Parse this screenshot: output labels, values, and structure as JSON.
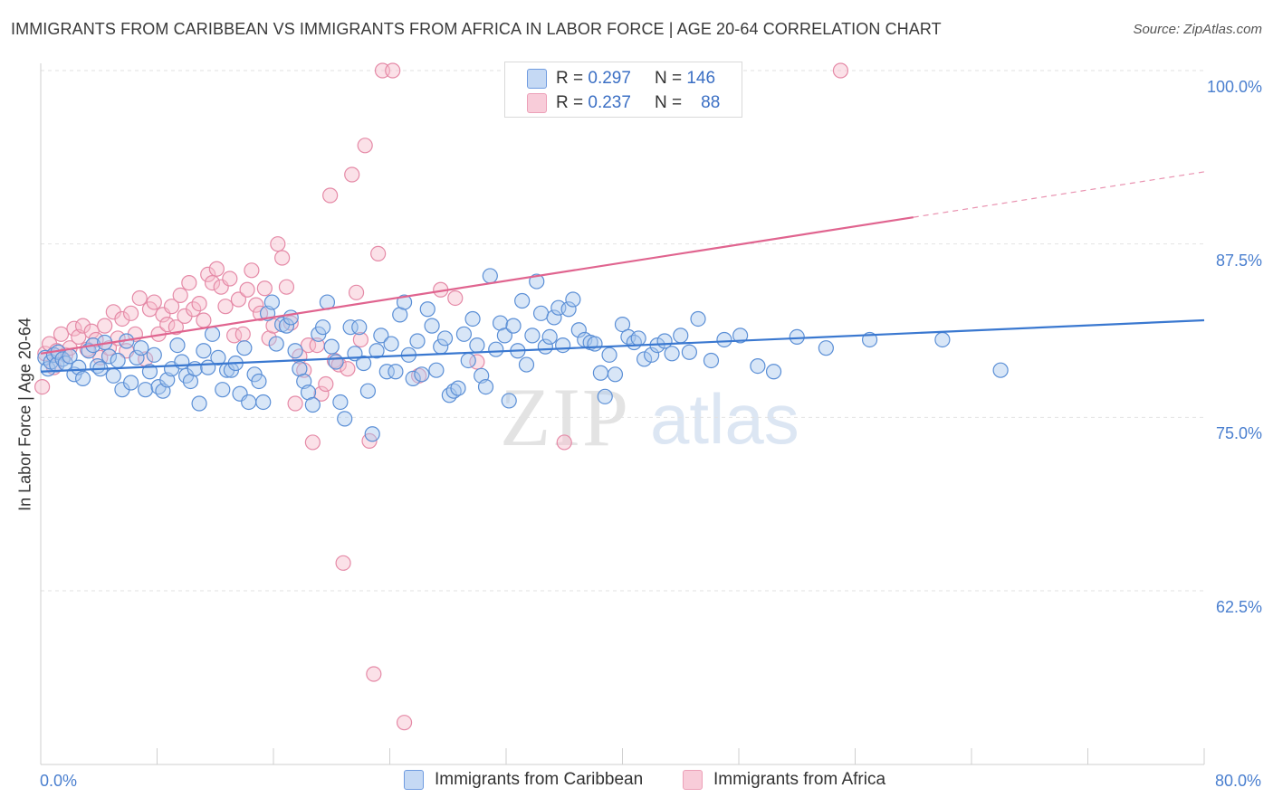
{
  "header": {
    "title": "IMMIGRANTS FROM CARIBBEAN VS IMMIGRANTS FROM AFRICA IN LABOR FORCE | AGE 20-64 CORRELATION CHART",
    "source": "Source: ZipAtlas.com"
  },
  "watermark": {
    "zip": "ZIP",
    "atlas": "atlas"
  },
  "stats": {
    "caribbean": {
      "r_label": "R =",
      "r": "0.297",
      "n_label": "N =",
      "n": "146"
    },
    "africa": {
      "r_label": "R =",
      "r": "0.237",
      "n_label": "N =",
      "n": "88"
    }
  },
  "colors": {
    "caribbean_fill": "#a9c7ee",
    "caribbean_stroke": "#5b8fd6",
    "caribbean_line": "#3a78d0",
    "africa_fill": "#f6bccd",
    "africa_stroke": "#e58aa7",
    "africa_line": "#e0648f",
    "accent_text": "#4a7fcf"
  },
  "chart_data": {
    "type": "scatter",
    "title": "IMMIGRANTS FROM CARIBBEAN VS IMMIGRANTS FROM AFRICA IN LABOR FORCE | AGE 20-64 CORRELATION CHART",
    "xlabel": "",
    "ylabel": "In Labor Force | Age 20-64",
    "xlim": [
      0,
      80
    ],
    "ylim": [
      50,
      101.5
    ],
    "x_tick_labels": [
      "0.0%",
      "80.0%"
    ],
    "y_ticks": [
      62.5,
      75.0,
      87.5,
      100.0
    ],
    "y_tick_labels": [
      "62.5%",
      "75.0%",
      "87.5%",
      "100.0%"
    ],
    "grid": "horizontal dashed",
    "legend_position": "bottom",
    "series": [
      {
        "name": "Immigrants from Caribbean",
        "trend": {
          "x": [
            0,
            80
          ],
          "y": [
            78.3,
            82.0
          ]
        },
        "points": [
          [
            0.3,
            79.3
          ],
          [
            0.5,
            78.5
          ],
          [
            0.7,
            79.0
          ],
          [
            0.9,
            79.5
          ],
          [
            1.1,
            78.8
          ],
          [
            1.2,
            79.7
          ],
          [
            1.5,
            79.2
          ],
          [
            1.7,
            78.9
          ],
          [
            2.0,
            79.4
          ],
          [
            2.3,
            78.1
          ],
          [
            2.6,
            78.6
          ],
          [
            2.9,
            77.8
          ],
          [
            3.3,
            79.8
          ],
          [
            3.6,
            80.2
          ],
          [
            3.9,
            78.7
          ],
          [
            4.1,
            78.5
          ],
          [
            4.4,
            80.4
          ],
          [
            4.7,
            79.4
          ],
          [
            5.0,
            78.0
          ],
          [
            5.3,
            79.1
          ],
          [
            5.6,
            77.0
          ],
          [
            5.9,
            80.5
          ],
          [
            6.2,
            77.5
          ],
          [
            6.6,
            79.3
          ],
          [
            6.9,
            80.0
          ],
          [
            7.2,
            77.0
          ],
          [
            7.5,
            78.3
          ],
          [
            7.8,
            79.5
          ],
          [
            8.1,
            77.2
          ],
          [
            8.4,
            76.9
          ],
          [
            8.7,
            77.7
          ],
          [
            9.0,
            78.5
          ],
          [
            9.4,
            80.2
          ],
          [
            9.7,
            79.0
          ],
          [
            10.0,
            78.0
          ],
          [
            10.3,
            77.6
          ],
          [
            10.6,
            78.5
          ],
          [
            10.9,
            76.0
          ],
          [
            11.2,
            79.8
          ],
          [
            11.5,
            78.6
          ],
          [
            11.8,
            81.0
          ],
          [
            12.2,
            79.3
          ],
          [
            12.5,
            77.0
          ],
          [
            12.8,
            78.4
          ],
          [
            13.1,
            78.4
          ],
          [
            13.4,
            78.9
          ],
          [
            13.7,
            76.7
          ],
          [
            14.0,
            80.0
          ],
          [
            14.3,
            76.1
          ],
          [
            14.7,
            78.1
          ],
          [
            15.0,
            77.6
          ],
          [
            15.3,
            76.1
          ],
          [
            15.6,
            82.5
          ],
          [
            15.9,
            83.3
          ],
          [
            16.2,
            80.3
          ],
          [
            16.6,
            81.7
          ],
          [
            16.9,
            81.6
          ],
          [
            17.2,
            82.2
          ],
          [
            17.5,
            79.8
          ],
          [
            17.8,
            78.5
          ],
          [
            18.1,
            77.6
          ],
          [
            18.4,
            76.8
          ],
          [
            18.7,
            75.9
          ],
          [
            19.1,
            81.0
          ],
          [
            19.4,
            81.5
          ],
          [
            19.7,
            83.3
          ],
          [
            20.0,
            80.1
          ],
          [
            20.3,
            79.0
          ],
          [
            20.6,
            76.1
          ],
          [
            20.9,
            74.9
          ],
          [
            21.3,
            81.5
          ],
          [
            21.6,
            79.6
          ],
          [
            21.9,
            81.5
          ],
          [
            22.2,
            78.9
          ],
          [
            22.5,
            76.9
          ],
          [
            22.8,
            73.8
          ],
          [
            23.1,
            79.8
          ],
          [
            23.4,
            80.9
          ],
          [
            23.8,
            78.3
          ],
          [
            24.1,
            80.3
          ],
          [
            24.4,
            78.3
          ],
          [
            24.7,
            82.4
          ],
          [
            25.0,
            83.3
          ],
          [
            25.3,
            79.5
          ],
          [
            25.6,
            77.8
          ],
          [
            25.9,
            80.5
          ],
          [
            26.2,
            78.1
          ],
          [
            26.6,
            82.8
          ],
          [
            26.9,
            81.6
          ],
          [
            27.2,
            78.4
          ],
          [
            27.5,
            80.1
          ],
          [
            27.8,
            80.7
          ],
          [
            28.1,
            76.6
          ],
          [
            28.4,
            76.9
          ],
          [
            28.7,
            77.1
          ],
          [
            29.1,
            81.0
          ],
          [
            29.4,
            79.1
          ],
          [
            29.7,
            82.1
          ],
          [
            30.0,
            80.2
          ],
          [
            30.3,
            78.0
          ],
          [
            30.6,
            77.2
          ],
          [
            30.9,
            85.2
          ],
          [
            31.3,
            79.9
          ],
          [
            31.6,
            81.8
          ],
          [
            31.9,
            80.9
          ],
          [
            32.2,
            76.2
          ],
          [
            32.5,
            81.6
          ],
          [
            32.8,
            79.8
          ],
          [
            33.1,
            83.4
          ],
          [
            33.4,
            78.8
          ],
          [
            33.8,
            80.9
          ],
          [
            34.1,
            84.8
          ],
          [
            34.4,
            82.5
          ],
          [
            34.7,
            80.1
          ],
          [
            35.0,
            80.8
          ],
          [
            35.3,
            82.2
          ],
          [
            35.6,
            82.9
          ],
          [
            35.9,
            80.2
          ],
          [
            36.3,
            82.8
          ],
          [
            36.6,
            83.5
          ],
          [
            37.0,
            81.3
          ],
          [
            37.4,
            80.6
          ],
          [
            37.8,
            80.4
          ],
          [
            38.1,
            80.3
          ],
          [
            38.5,
            78.2
          ],
          [
            38.8,
            76.5
          ],
          [
            39.1,
            79.5
          ],
          [
            39.5,
            78.1
          ],
          [
            40.0,
            81.7
          ],
          [
            40.4,
            80.8
          ],
          [
            40.8,
            80.4
          ],
          [
            41.1,
            80.7
          ],
          [
            41.5,
            79.2
          ],
          [
            42.0,
            79.5
          ],
          [
            42.4,
            80.2
          ],
          [
            42.9,
            80.5
          ],
          [
            43.4,
            79.6
          ],
          [
            44.0,
            80.9
          ],
          [
            44.6,
            79.7
          ],
          [
            45.2,
            82.1
          ],
          [
            46.1,
            79.1
          ],
          [
            47.0,
            80.6
          ],
          [
            48.1,
            80.9
          ],
          [
            49.3,
            78.7
          ],
          [
            50.4,
            78.3
          ],
          [
            52.0,
            80.8
          ],
          [
            54.0,
            80.0
          ],
          [
            57.0,
            80.6
          ],
          [
            62.0,
            80.6
          ],
          [
            66.0,
            78.4
          ]
        ]
      },
      {
        "name": "Immigrants from Africa",
        "trend": {
          "x": [
            0,
            80
          ],
          "y": [
            79.6,
            92.7
          ]
        },
        "trend_dashed_from": 60,
        "points": [
          [
            0.1,
            77.2
          ],
          [
            0.3,
            79.6
          ],
          [
            0.6,
            80.3
          ],
          [
            0.9,
            78.6
          ],
          [
            1.1,
            79.8
          ],
          [
            1.4,
            81.0
          ],
          [
            1.7,
            79.5
          ],
          [
            2.0,
            80.0
          ],
          [
            2.3,
            81.4
          ],
          [
            2.6,
            80.8
          ],
          [
            2.9,
            81.6
          ],
          [
            3.2,
            79.9
          ],
          [
            3.5,
            81.2
          ],
          [
            3.8,
            80.6
          ],
          [
            4.1,
            79.3
          ],
          [
            4.4,
            81.6
          ],
          [
            4.7,
            80.0
          ],
          [
            5.0,
            82.6
          ],
          [
            5.3,
            80.7
          ],
          [
            5.6,
            82.1
          ],
          [
            5.9,
            79.8
          ],
          [
            6.2,
            82.5
          ],
          [
            6.5,
            81.0
          ],
          [
            6.8,
            83.6
          ],
          [
            7.2,
            79.2
          ],
          [
            7.5,
            82.8
          ],
          [
            7.8,
            83.3
          ],
          [
            8.1,
            81.0
          ],
          [
            8.4,
            82.4
          ],
          [
            8.7,
            81.7
          ],
          [
            9.0,
            83.0
          ],
          [
            9.3,
            81.5
          ],
          [
            9.6,
            83.8
          ],
          [
            9.9,
            82.3
          ],
          [
            10.2,
            84.7
          ],
          [
            10.5,
            82.8
          ],
          [
            10.9,
            83.2
          ],
          [
            11.2,
            82.0
          ],
          [
            11.5,
            85.3
          ],
          [
            11.8,
            84.7
          ],
          [
            12.1,
            85.7
          ],
          [
            12.4,
            84.4
          ],
          [
            12.7,
            83.0
          ],
          [
            13.0,
            85.0
          ],
          [
            13.3,
            80.9
          ],
          [
            13.6,
            83.5
          ],
          [
            13.9,
            81.0
          ],
          [
            14.2,
            84.2
          ],
          [
            14.5,
            85.6
          ],
          [
            14.8,
            83.1
          ],
          [
            15.1,
            82.5
          ],
          [
            15.4,
            84.3
          ],
          [
            15.7,
            80.7
          ],
          [
            16.0,
            81.6
          ],
          [
            16.3,
            87.5
          ],
          [
            16.6,
            86.5
          ],
          [
            16.9,
            84.4
          ],
          [
            17.2,
            81.8
          ],
          [
            17.5,
            76.0
          ],
          [
            17.8,
            79.4
          ],
          [
            18.1,
            78.4
          ],
          [
            18.4,
            80.2
          ],
          [
            18.7,
            73.2
          ],
          [
            19.0,
            80.2
          ],
          [
            19.3,
            76.7
          ],
          [
            19.6,
            77.4
          ],
          [
            19.9,
            91.0
          ],
          [
            20.2,
            79.1
          ],
          [
            20.5,
            78.8
          ],
          [
            20.8,
            64.5
          ],
          [
            21.1,
            78.5
          ],
          [
            21.4,
            92.5
          ],
          [
            21.7,
            84.0
          ],
          [
            22.0,
            80.6
          ],
          [
            22.3,
            94.6
          ],
          [
            22.6,
            73.3
          ],
          [
            22.9,
            56.5
          ],
          [
            23.2,
            86.8
          ],
          [
            23.5,
            100.0
          ],
          [
            24.2,
            100.0
          ],
          [
            25.0,
            53.0
          ],
          [
            26.0,
            78.0
          ],
          [
            27.5,
            84.2
          ],
          [
            28.5,
            83.6
          ],
          [
            30.0,
            79.0
          ],
          [
            33.0,
            99.8
          ],
          [
            36.0,
            73.2
          ],
          [
            55.0,
            100.0
          ]
        ]
      }
    ]
  },
  "legend": {
    "caribbean": "Immigrants from Caribbean",
    "africa": "Immigrants from Africa"
  },
  "axes": {
    "y_label": "In Labor Force | Age 20-64",
    "x_left": "0.0%",
    "x_right": "80.0%"
  }
}
